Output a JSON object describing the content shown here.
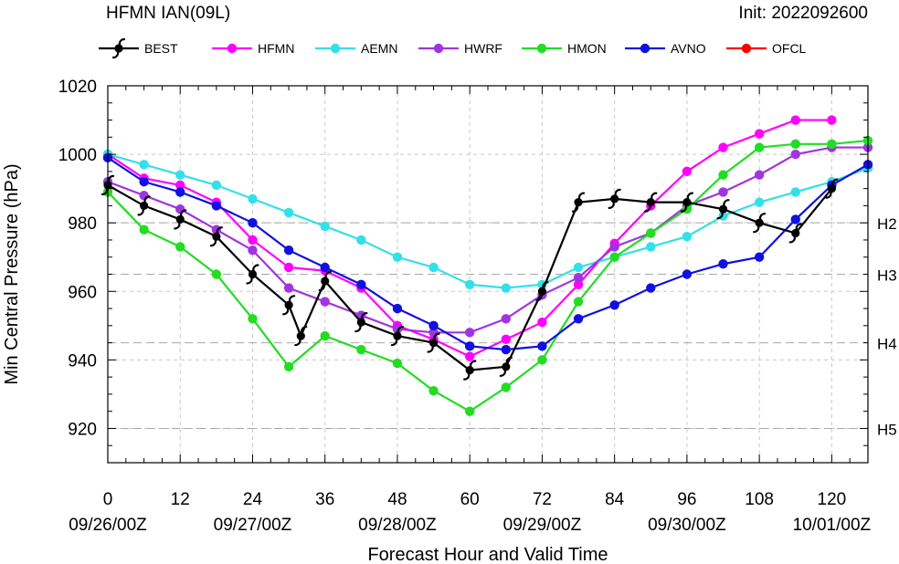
{
  "header": {
    "title": "HFMN IAN(09L)",
    "init": "Init: 2022092600"
  },
  "chart_data": {
    "type": "line",
    "title": "HFMN IAN(09L)",
    "subtitle": "Init: 2022092600",
    "xlabel": "Forecast Hour and Valid Time",
    "ylabel": "Min Central Pressure (hPa)",
    "xlim": [
      0,
      126
    ],
    "ylim": [
      910,
      1020
    ],
    "grid": true,
    "legend_position": "top",
    "x_ticks": [
      0,
      12,
      24,
      36,
      48,
      60,
      72,
      84,
      96,
      108,
      120
    ],
    "y_ticks": [
      920,
      940,
      960,
      980,
      1000,
      1020
    ],
    "date_ticks": [
      {
        "x": 0,
        "label": "09/26/00Z"
      },
      {
        "x": 24,
        "label": "09/27/00Z"
      },
      {
        "x": 48,
        "label": "09/28/00Z"
      },
      {
        "x": 72,
        "label": "09/29/00Z"
      },
      {
        "x": 96,
        "label": "09/30/00Z"
      },
      {
        "x": 120,
        "label": "10/01/00Z"
      }
    ],
    "category_lines": [
      {
        "value": 980,
        "label": "H2"
      },
      {
        "value": 965,
        "label": "H3"
      },
      {
        "value": 945,
        "label": "H4"
      },
      {
        "value": 920,
        "label": "H5"
      }
    ],
    "series": [
      {
        "name": "BEST",
        "color": "#000000",
        "marker": "hurricane-icon",
        "x": [
          0,
          6,
          12,
          18,
          24,
          30,
          32,
          36,
          42,
          48,
          54,
          60,
          66,
          72,
          78,
          84,
          90,
          96,
          102,
          108,
          114,
          120
        ],
        "y": [
          991,
          985,
          981,
          976,
          965,
          956,
          947,
          963,
          951,
          947,
          945,
          937,
          938,
          960,
          986,
          987,
          986,
          986,
          984,
          980,
          977,
          990
        ]
      },
      {
        "name": "HFMN",
        "color": "#ff00ff",
        "marker": "circle",
        "x": [
          0,
          6,
          12,
          18,
          24,
          30,
          36,
          42,
          48,
          54,
          60,
          66,
          72,
          78,
          84,
          90,
          96,
          102,
          108,
          114,
          120
        ],
        "y": [
          1000,
          993,
          991,
          986,
          975,
          967,
          966,
          961,
          950,
          946,
          941,
          946,
          951,
          962,
          974,
          985,
          995,
          1002,
          1006,
          1010,
          1010
        ]
      },
      {
        "name": "AEMN",
        "color": "#33e0e8",
        "marker": "circle",
        "x": [
          0,
          6,
          12,
          18,
          24,
          30,
          36,
          42,
          48,
          54,
          60,
          66,
          72,
          78,
          84,
          90,
          96,
          102,
          108,
          114,
          120,
          126
        ],
        "y": [
          1000,
          997,
          994,
          991,
          987,
          983,
          979,
          975,
          970,
          967,
          962,
          961,
          962,
          967,
          970,
          973,
          976,
          982,
          986,
          989,
          992,
          996
        ]
      },
      {
        "name": "HWRF",
        "color": "#a035e0",
        "marker": "circle",
        "x": [
          0,
          6,
          12,
          18,
          24,
          30,
          36,
          42,
          48,
          54,
          60,
          66,
          72,
          78,
          84,
          90,
          96,
          102,
          108,
          114,
          120,
          126
        ],
        "y": [
          992,
          988,
          984,
          978,
          972,
          961,
          957,
          953,
          949,
          948,
          948,
          952,
          959,
          964,
          973,
          977,
          985,
          989,
          994,
          1000,
          1002,
          1002
        ]
      },
      {
        "name": "HMON",
        "color": "#22dd22",
        "marker": "circle",
        "x": [
          0,
          6,
          12,
          18,
          24,
          30,
          36,
          42,
          48,
          54,
          60,
          66,
          72,
          78,
          84,
          90,
          96,
          102,
          108,
          114,
          120,
          126
        ],
        "y": [
          989,
          978,
          973,
          965,
          952,
          938,
          947,
          943,
          939,
          931,
          925,
          932,
          940,
          957,
          970,
          977,
          984,
          994,
          1002,
          1003,
          1003,
          1004
        ]
      },
      {
        "name": "AVNO",
        "color": "#1010e0",
        "marker": "circle",
        "x": [
          0,
          6,
          12,
          18,
          24,
          30,
          36,
          42,
          48,
          54,
          60,
          66,
          72,
          78,
          84,
          90,
          96,
          102,
          108,
          114,
          120,
          126
        ],
        "y": [
          999,
          992,
          989,
          985,
          980,
          972,
          967,
          962,
          955,
          950,
          944,
          943,
          944,
          952,
          956,
          961,
          965,
          968,
          970,
          981,
          991,
          997
        ]
      },
      {
        "name": "OFCL",
        "color": "#ff0000",
        "marker": "circle",
        "x": [],
        "y": []
      }
    ]
  }
}
